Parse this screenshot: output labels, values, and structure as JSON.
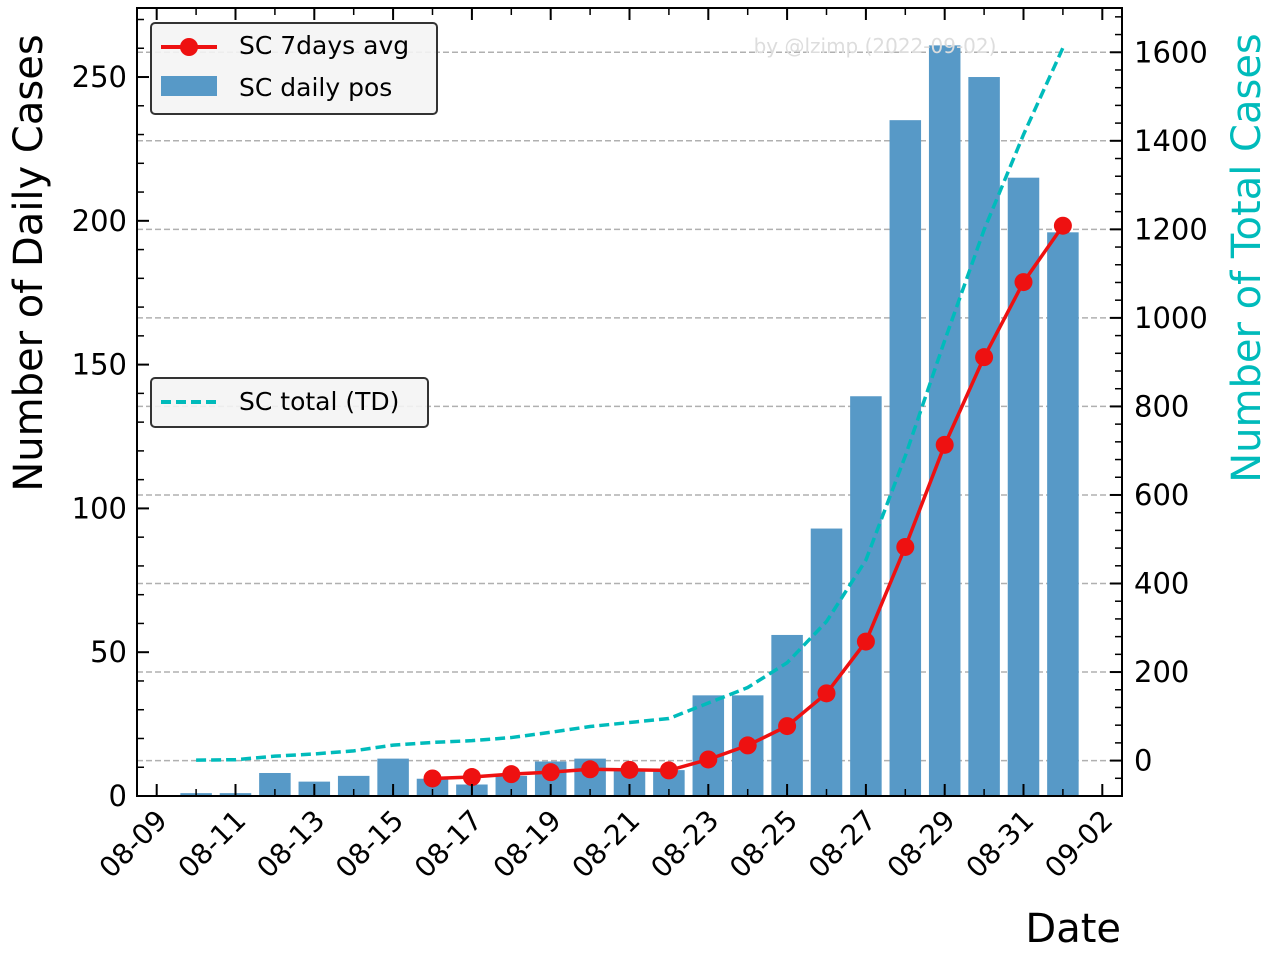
{
  "chart_data": {
    "type": "bar",
    "x": [
      "08-10",
      "08-11",
      "08-12",
      "08-13",
      "08-14",
      "08-15",
      "08-16",
      "08-17",
      "08-18",
      "08-19",
      "08-20",
      "08-21",
      "08-22",
      "08-23",
      "08-24",
      "08-25",
      "08-26",
      "08-27",
      "08-28",
      "08-29",
      "08-30",
      "08-31",
      "09-01"
    ],
    "series": [
      {
        "name": "SC daily pos",
        "type": "bar",
        "axis": "left",
        "color": "#5799c7",
        "values": [
          1,
          1,
          8,
          5,
          7,
          13,
          6,
          4,
          7,
          12,
          13,
          9,
          9,
          35,
          35,
          56,
          93,
          139,
          235,
          261,
          250,
          215,
          196
        ]
      },
      {
        "name": "SC 7days avg",
        "type": "line",
        "axis": "left",
        "color": "#ee1111",
        "x": [
          "08-16",
          "08-17",
          "08-18",
          "08-19",
          "08-20",
          "08-21",
          "08-22",
          "08-23",
          "08-24",
          "08-25",
          "08-26",
          "08-27",
          "08-28",
          "08-29",
          "08-30",
          "08-31",
          "09-01"
        ],
        "values": [
          6.1,
          6.6,
          7.6,
          8.3,
          9.3,
          9.1,
          8.9,
          12.7,
          17.6,
          24.3,
          35.7,
          53.7,
          86.6,
          122.1,
          152.6,
          178.7,
          198.3
        ]
      },
      {
        "name": "SC total (TD)",
        "type": "line",
        "axis": "right",
        "color": "#00bbbb",
        "dash": true,
        "values": [
          1,
          2,
          10,
          15,
          22,
          35,
          41,
          45,
          52,
          64,
          77,
          86,
          95,
          130,
          165,
          221,
          314,
          453,
          688,
          949,
          1199,
          1414,
          1610
        ]
      }
    ],
    "xlabel": "Date",
    "ylabel": "Number of Daily Cases",
    "y2label": "Number of Total Cases",
    "ylim": [
      0,
      274
    ],
    "y2lim": [
      -80,
      1700
    ],
    "xlim": [
      "08-08 12:00",
      "09-02 12:00"
    ],
    "yticks": [
      "0",
      "50",
      "100",
      "150",
      "200",
      "250"
    ],
    "y2ticks": [
      "0",
      "200",
      "400",
      "600",
      "800",
      "1000",
      "1200",
      "1400",
      "1600"
    ],
    "xticks": [
      "08-09",
      "08-11",
      "08-13",
      "08-15",
      "08-17",
      "08-19",
      "08-21",
      "08-23",
      "08-25",
      "08-27",
      "08-29",
      "08-31",
      "09-02"
    ],
    "grid": "horizontal dashed (right axis)",
    "legend": [
      {
        "position": "top-left",
        "entries": [
          "SC 7days avg",
          "SC daily pos"
        ]
      },
      {
        "position": "center-left",
        "entries": [
          "SC total (TD)"
        ]
      }
    ],
    "watermark": "by @lzimp (2022-09-02)"
  }
}
